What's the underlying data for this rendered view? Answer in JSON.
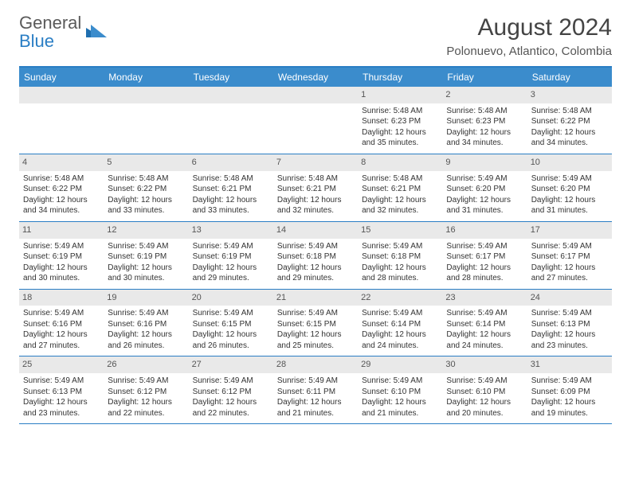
{
  "logo": {
    "text1": "General",
    "text2": "Blue"
  },
  "title": "August 2024",
  "location": "Polonuevo, Atlantico, Colombia",
  "colors": {
    "header_bg": "#3b8ccc",
    "border": "#2a7ec4",
    "daynum_bg": "#e9e9e9",
    "text": "#333333",
    "logo_gray": "#5a5a5a",
    "logo_blue": "#2a7ec4"
  },
  "day_names": [
    "Sunday",
    "Monday",
    "Tuesday",
    "Wednesday",
    "Thursday",
    "Friday",
    "Saturday"
  ],
  "weeks": [
    [
      {
        "num": "",
        "sunrise": "",
        "sunset": "",
        "daylight": ""
      },
      {
        "num": "",
        "sunrise": "",
        "sunset": "",
        "daylight": ""
      },
      {
        "num": "",
        "sunrise": "",
        "sunset": "",
        "daylight": ""
      },
      {
        "num": "",
        "sunrise": "",
        "sunset": "",
        "daylight": ""
      },
      {
        "num": "1",
        "sunrise": "Sunrise: 5:48 AM",
        "sunset": "Sunset: 6:23 PM",
        "daylight": "Daylight: 12 hours and 35 minutes."
      },
      {
        "num": "2",
        "sunrise": "Sunrise: 5:48 AM",
        "sunset": "Sunset: 6:23 PM",
        "daylight": "Daylight: 12 hours and 34 minutes."
      },
      {
        "num": "3",
        "sunrise": "Sunrise: 5:48 AM",
        "sunset": "Sunset: 6:22 PM",
        "daylight": "Daylight: 12 hours and 34 minutes."
      }
    ],
    [
      {
        "num": "4",
        "sunrise": "Sunrise: 5:48 AM",
        "sunset": "Sunset: 6:22 PM",
        "daylight": "Daylight: 12 hours and 34 minutes."
      },
      {
        "num": "5",
        "sunrise": "Sunrise: 5:48 AM",
        "sunset": "Sunset: 6:22 PM",
        "daylight": "Daylight: 12 hours and 33 minutes."
      },
      {
        "num": "6",
        "sunrise": "Sunrise: 5:48 AM",
        "sunset": "Sunset: 6:21 PM",
        "daylight": "Daylight: 12 hours and 33 minutes."
      },
      {
        "num": "7",
        "sunrise": "Sunrise: 5:48 AM",
        "sunset": "Sunset: 6:21 PM",
        "daylight": "Daylight: 12 hours and 32 minutes."
      },
      {
        "num": "8",
        "sunrise": "Sunrise: 5:48 AM",
        "sunset": "Sunset: 6:21 PM",
        "daylight": "Daylight: 12 hours and 32 minutes."
      },
      {
        "num": "9",
        "sunrise": "Sunrise: 5:49 AM",
        "sunset": "Sunset: 6:20 PM",
        "daylight": "Daylight: 12 hours and 31 minutes."
      },
      {
        "num": "10",
        "sunrise": "Sunrise: 5:49 AM",
        "sunset": "Sunset: 6:20 PM",
        "daylight": "Daylight: 12 hours and 31 minutes."
      }
    ],
    [
      {
        "num": "11",
        "sunrise": "Sunrise: 5:49 AM",
        "sunset": "Sunset: 6:19 PM",
        "daylight": "Daylight: 12 hours and 30 minutes."
      },
      {
        "num": "12",
        "sunrise": "Sunrise: 5:49 AM",
        "sunset": "Sunset: 6:19 PM",
        "daylight": "Daylight: 12 hours and 30 minutes."
      },
      {
        "num": "13",
        "sunrise": "Sunrise: 5:49 AM",
        "sunset": "Sunset: 6:19 PM",
        "daylight": "Daylight: 12 hours and 29 minutes."
      },
      {
        "num": "14",
        "sunrise": "Sunrise: 5:49 AM",
        "sunset": "Sunset: 6:18 PM",
        "daylight": "Daylight: 12 hours and 29 minutes."
      },
      {
        "num": "15",
        "sunrise": "Sunrise: 5:49 AM",
        "sunset": "Sunset: 6:18 PM",
        "daylight": "Daylight: 12 hours and 28 minutes."
      },
      {
        "num": "16",
        "sunrise": "Sunrise: 5:49 AM",
        "sunset": "Sunset: 6:17 PM",
        "daylight": "Daylight: 12 hours and 28 minutes."
      },
      {
        "num": "17",
        "sunrise": "Sunrise: 5:49 AM",
        "sunset": "Sunset: 6:17 PM",
        "daylight": "Daylight: 12 hours and 27 minutes."
      }
    ],
    [
      {
        "num": "18",
        "sunrise": "Sunrise: 5:49 AM",
        "sunset": "Sunset: 6:16 PM",
        "daylight": "Daylight: 12 hours and 27 minutes."
      },
      {
        "num": "19",
        "sunrise": "Sunrise: 5:49 AM",
        "sunset": "Sunset: 6:16 PM",
        "daylight": "Daylight: 12 hours and 26 minutes."
      },
      {
        "num": "20",
        "sunrise": "Sunrise: 5:49 AM",
        "sunset": "Sunset: 6:15 PM",
        "daylight": "Daylight: 12 hours and 26 minutes."
      },
      {
        "num": "21",
        "sunrise": "Sunrise: 5:49 AM",
        "sunset": "Sunset: 6:15 PM",
        "daylight": "Daylight: 12 hours and 25 minutes."
      },
      {
        "num": "22",
        "sunrise": "Sunrise: 5:49 AM",
        "sunset": "Sunset: 6:14 PM",
        "daylight": "Daylight: 12 hours and 24 minutes."
      },
      {
        "num": "23",
        "sunrise": "Sunrise: 5:49 AM",
        "sunset": "Sunset: 6:14 PM",
        "daylight": "Daylight: 12 hours and 24 minutes."
      },
      {
        "num": "24",
        "sunrise": "Sunrise: 5:49 AM",
        "sunset": "Sunset: 6:13 PM",
        "daylight": "Daylight: 12 hours and 23 minutes."
      }
    ],
    [
      {
        "num": "25",
        "sunrise": "Sunrise: 5:49 AM",
        "sunset": "Sunset: 6:13 PM",
        "daylight": "Daylight: 12 hours and 23 minutes."
      },
      {
        "num": "26",
        "sunrise": "Sunrise: 5:49 AM",
        "sunset": "Sunset: 6:12 PM",
        "daylight": "Daylight: 12 hours and 22 minutes."
      },
      {
        "num": "27",
        "sunrise": "Sunrise: 5:49 AM",
        "sunset": "Sunset: 6:12 PM",
        "daylight": "Daylight: 12 hours and 22 minutes."
      },
      {
        "num": "28",
        "sunrise": "Sunrise: 5:49 AM",
        "sunset": "Sunset: 6:11 PM",
        "daylight": "Daylight: 12 hours and 21 minutes."
      },
      {
        "num": "29",
        "sunrise": "Sunrise: 5:49 AM",
        "sunset": "Sunset: 6:10 PM",
        "daylight": "Daylight: 12 hours and 21 minutes."
      },
      {
        "num": "30",
        "sunrise": "Sunrise: 5:49 AM",
        "sunset": "Sunset: 6:10 PM",
        "daylight": "Daylight: 12 hours and 20 minutes."
      },
      {
        "num": "31",
        "sunrise": "Sunrise: 5:49 AM",
        "sunset": "Sunset: 6:09 PM",
        "daylight": "Daylight: 12 hours and 19 minutes."
      }
    ]
  ]
}
